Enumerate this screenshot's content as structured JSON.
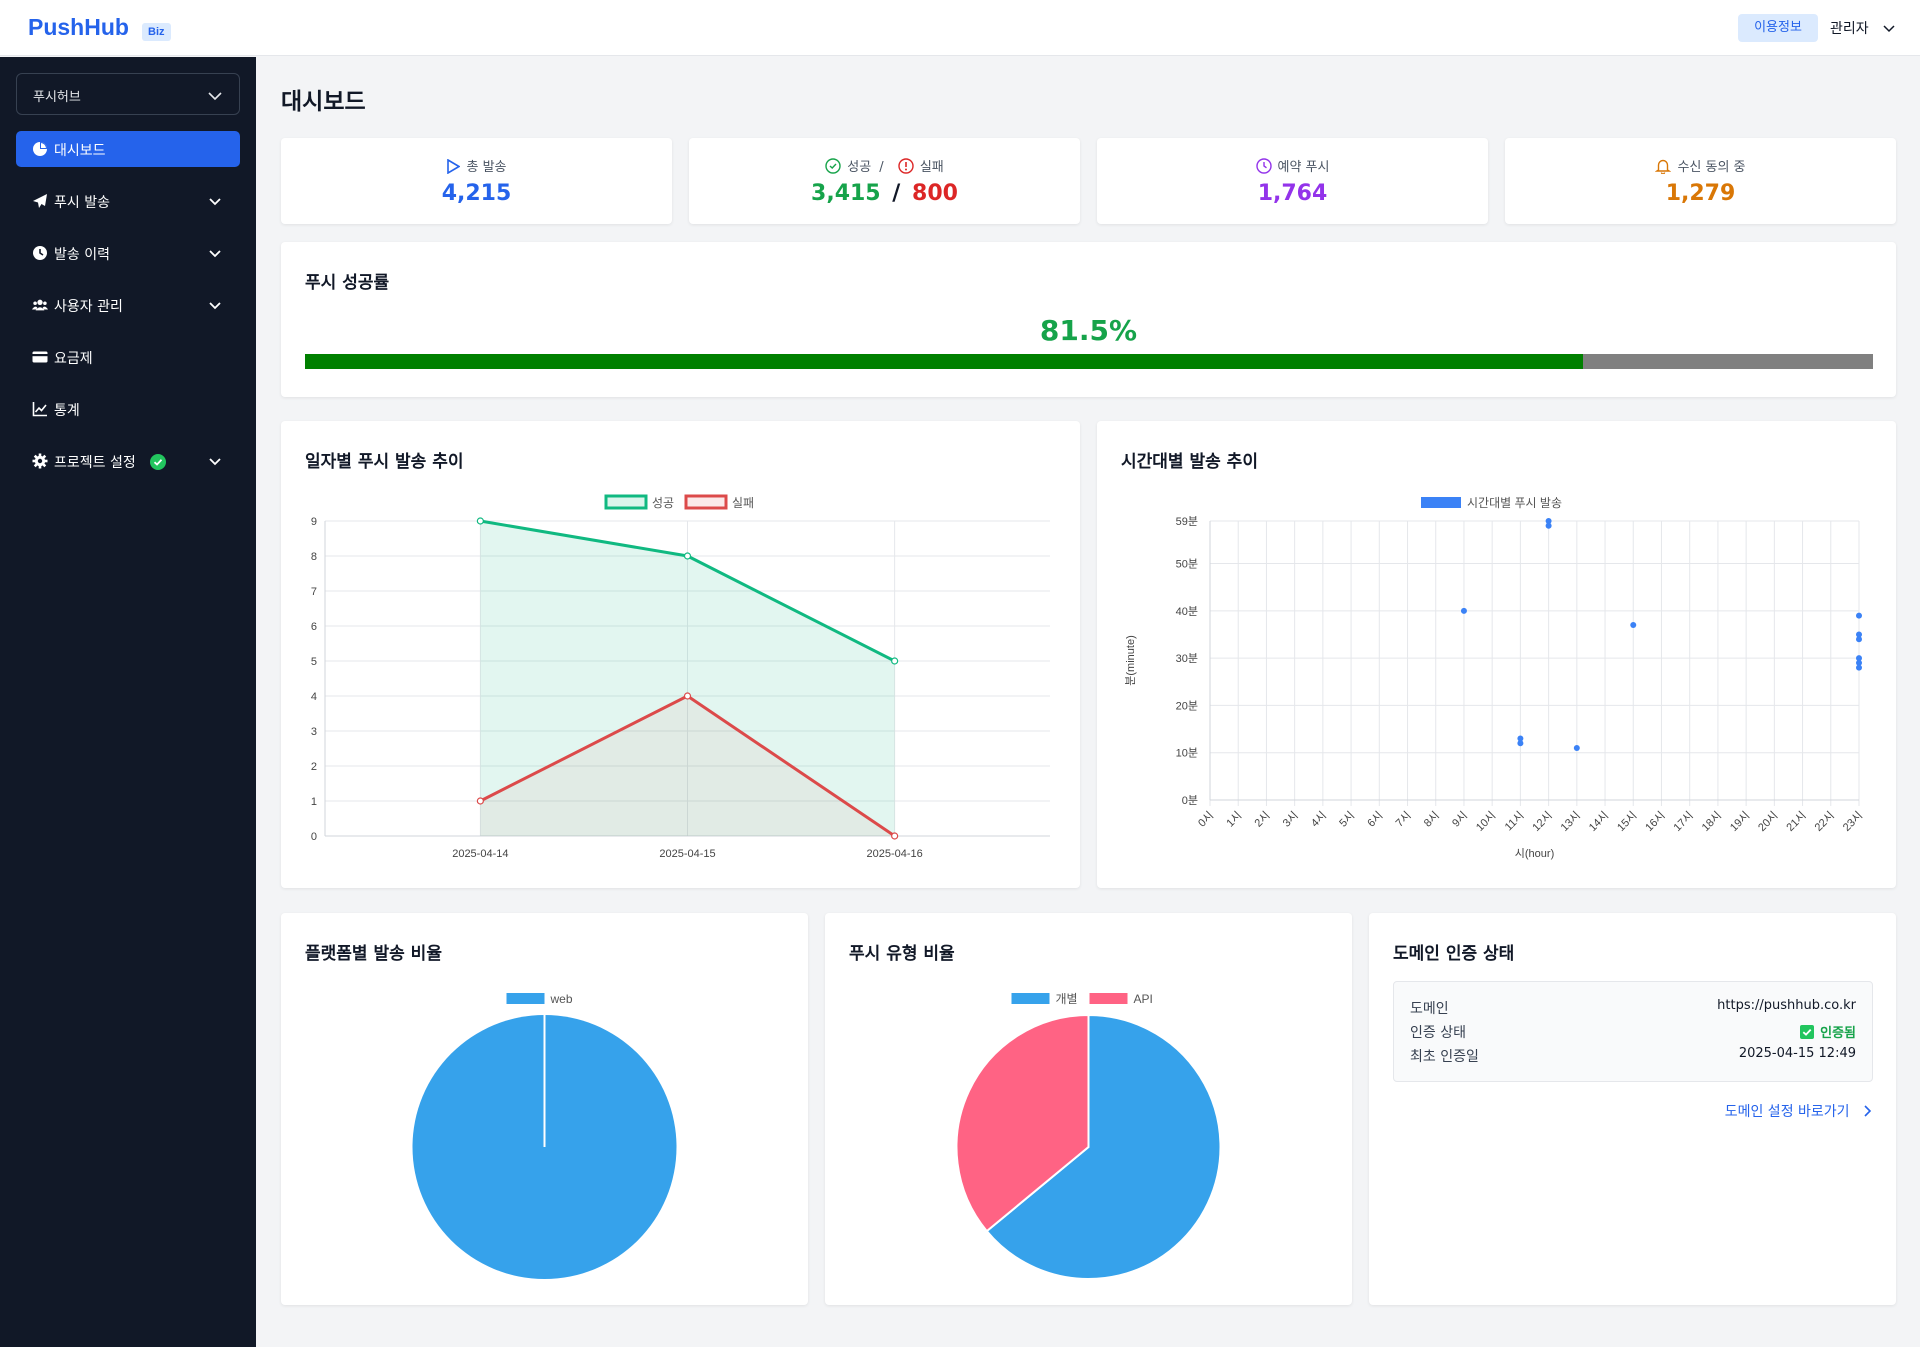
{
  "header": {
    "logo": "PushHub",
    "logo_badge": "Biz",
    "usage_button": "이용정보",
    "user_menu": "관리자"
  },
  "sidebar": {
    "project_select": "푸시허브",
    "items": [
      {
        "label": "대시보드",
        "icon": "chart-pie-icon",
        "active": true
      },
      {
        "label": "푸시 발송",
        "icon": "paper-plane-icon",
        "expandable": true
      },
      {
        "label": "발송 이력",
        "icon": "clock-icon",
        "expandable": true
      },
      {
        "label": "사용자 관리",
        "icon": "users-icon",
        "expandable": true
      },
      {
        "label": "요금제",
        "icon": "credit-card-icon"
      },
      {
        "label": "통계",
        "icon": "chart-line-icon"
      },
      {
        "label": "프로젝트 설정",
        "icon": "gear-icon",
        "expandable": true,
        "status": "verified"
      }
    ]
  },
  "page_title": "대시보드",
  "stats": {
    "total": {
      "label": "총 발송",
      "value": "4,215",
      "color": "#2563eb"
    },
    "success_fail": {
      "success_label": "성공",
      "separator": "/",
      "fail_label": "실패",
      "success_value": "3,415",
      "fail_value": "800",
      "value_separator": "/",
      "success_color": "#16a34a",
      "fail_color": "#dc2626"
    },
    "scheduled": {
      "label": "예약 푸시",
      "value": "1,764",
      "color": "#9333ea"
    },
    "consent": {
      "label": "수신 동의 중",
      "value": "1,279",
      "color": "#d97706"
    }
  },
  "success_rate": {
    "title": "푸시 성공률",
    "value_text": "81.5%",
    "value": 81.5
  },
  "daily_chart": {
    "title": "일자별 푸시 발송 추이"
  },
  "hourly_chart": {
    "title": "시간대별 발송 추이"
  },
  "platform_chart": {
    "title": "플랫폼별 발송 비율"
  },
  "type_chart": {
    "title": "푸시 유형 비율"
  },
  "domain": {
    "title": "도메인 인증 상태",
    "rows": [
      {
        "key": "도메인",
        "value": "https://pushhub.co.kr"
      },
      {
        "key": "인증 상태",
        "value": "인증됨"
      },
      {
        "key": "최초 인증일",
        "value": "2025-04-15 12:49"
      }
    ],
    "link": "도메인 설정 바로가기"
  },
  "chart_data": [
    {
      "type": "line",
      "categories": [
        "2025-04-14",
        "2025-04-15",
        "2025-04-16"
      ],
      "series": [
        {
          "name": "성공",
          "values": [
            9,
            8,
            5
          ],
          "color": "#10b981"
        },
        {
          "name": "실패",
          "values": [
            1,
            4,
            0
          ],
          "color": "#dc4a4a"
        }
      ],
      "ylim": [
        0,
        9
      ],
      "yticks": [
        "0",
        "1",
        "2",
        "3",
        "4",
        "5",
        "6",
        "7",
        "8",
        "9"
      ],
      "grid": true,
      "legend": "top"
    },
    {
      "type": "scatter",
      "series": [
        {
          "name": "시간대별 푸시 발송",
          "color": "#3b82f6",
          "points": [
            [
              9,
              40
            ],
            [
              11,
              12
            ],
            [
              11,
              13
            ],
            [
              12,
              58
            ],
            [
              12,
              59
            ],
            [
              13,
              11
            ],
            [
              15,
              37
            ],
            [
              23,
              39
            ],
            [
              23,
              35
            ],
            [
              23,
              34
            ],
            [
              23,
              30
            ],
            [
              23,
              29
            ],
            [
              23,
              28
            ]
          ]
        }
      ],
      "xticks": [
        "0시",
        "1시",
        "2시",
        "3시",
        "4시",
        "5시",
        "6시",
        "7시",
        "8시",
        "9시",
        "10시",
        "11시",
        "12시",
        "13시",
        "14시",
        "15시",
        "16시",
        "17시",
        "18시",
        "19시",
        "20시",
        "21시",
        "22시",
        "23시"
      ],
      "yticks": [
        "0분",
        "10분",
        "20분",
        "30분",
        "40분",
        "50분",
        "59분"
      ],
      "xlabel": "시(hour)",
      "ylabel": "분(minute)",
      "xlim": [
        0,
        23
      ],
      "ylim": [
        0,
        59
      ],
      "grid": true,
      "legend": "top"
    },
    {
      "type": "pie",
      "labels": [
        "web"
      ],
      "values": [
        100
      ],
      "colors": [
        "#36a2eb"
      ],
      "legend": "top"
    },
    {
      "type": "pie",
      "labels": [
        "개별",
        "API"
      ],
      "values": [
        64,
        36
      ],
      "colors": [
        "#36a2eb",
        "#ff6384"
      ],
      "legend": "top"
    }
  ]
}
